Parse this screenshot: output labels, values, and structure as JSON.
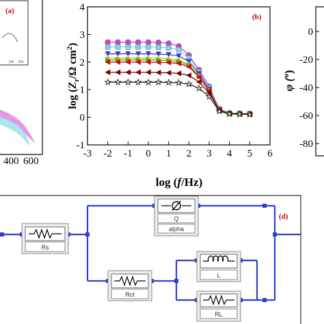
{
  "panels": {
    "a": {
      "tag": "(a)",
      "x_ticks_visible": [
        "400",
        "600"
      ],
      "inset_ticks": [
        "1.6",
        "2.0"
      ]
    },
    "b": {
      "tag": "(b)",
      "ylabel_parts": [
        "log (",
        "Z",
        "r",
        "/",
        "Ω cm",
        "2",
        ")"
      ],
      "xlabel_parts": [
        "log (",
        "f",
        "/Hz)"
      ]
    },
    "c": {
      "ylabel_parts": [
        "φ (",
        "o",
        ")"
      ],
      "y_ticks": [
        "0",
        "-20",
        "-40",
        "-60",
        "-80"
      ]
    },
    "d": {
      "tag": "(d)",
      "components": {
        "rs": "Rs",
        "q": "Q",
        "alpha": "alpha",
        "rct": "Rct",
        "l": "L",
        "rl": "RL"
      }
    }
  },
  "chart_data": [
    {
      "panel": "b",
      "type": "line",
      "xlabel": "log (f/Hz)",
      "ylabel": "log (Zr/Ω cm2)",
      "xlim": [
        -3,
        6
      ],
      "ylim": [
        -1,
        4
      ],
      "x_ticks": [
        -3,
        -2,
        -1,
        0,
        1,
        2,
        3,
        4,
        5,
        6
      ],
      "y_ticks": [
        -1,
        0,
        1,
        2,
        3,
        4
      ],
      "x": [
        -2,
        -1.5,
        -1,
        -0.5,
        0,
        0.5,
        1,
        1.5,
        2,
        2.5,
        3,
        3.5,
        4,
        4.5,
        5
      ],
      "series": [
        {
          "color": "#cc44cc",
          "marker": "circle",
          "values": [
            2.72,
            2.72,
            2.72,
            2.72,
            2.72,
            2.71,
            2.68,
            2.58,
            2.25,
            1.72,
            1.12,
            0.3,
            0.15,
            0.14,
            0.13
          ]
        },
        {
          "color": "#7fd4e8",
          "marker": "square",
          "values": [
            2.55,
            2.55,
            2.55,
            2.55,
            2.55,
            2.54,
            2.52,
            2.45,
            2.15,
            1.65,
            1.08,
            0.3,
            0.14,
            0.13,
            0.12
          ]
        },
        {
          "color": "#3a3ad9",
          "marker": "triangle-down",
          "values": [
            2.3,
            2.3,
            2.3,
            2.3,
            2.3,
            2.29,
            2.27,
            2.22,
            2.02,
            1.58,
            1.02,
            0.28,
            0.14,
            0.13,
            0.12
          ]
        },
        {
          "color": "#e6b800",
          "marker": "triangle-up",
          "values": [
            2.15,
            2.15,
            2.15,
            2.15,
            2.15,
            2.14,
            2.12,
            2.08,
            1.92,
            1.5,
            0.98,
            0.27,
            0.13,
            0.12,
            0.11
          ]
        },
        {
          "color": "#2db82d",
          "marker": "triangle-right",
          "values": [
            2.08,
            2.08,
            2.08,
            2.08,
            2.08,
            2.07,
            2.05,
            2.02,
            1.88,
            1.48,
            0.96,
            0.27,
            0.13,
            0.12,
            0.11
          ]
        },
        {
          "color": "#e00000",
          "marker": "triangle-left",
          "values": [
            2.0,
            2.0,
            2.0,
            2.0,
            2.0,
            1.99,
            1.98,
            1.95,
            1.83,
            1.45,
            0.95,
            0.26,
            0.13,
            0.12,
            0.11
          ]
        },
        {
          "color": "#7a0000",
          "marker": "triangle-left",
          "values": [
            1.63,
            1.63,
            1.63,
            1.63,
            1.63,
            1.62,
            1.61,
            1.59,
            1.52,
            1.28,
            0.88,
            0.25,
            0.13,
            0.12,
            0.11
          ]
        },
        {
          "color": "#222222",
          "marker": "star",
          "values": [
            1.27,
            1.27,
            1.27,
            1.27,
            1.27,
            1.27,
            1.26,
            1.25,
            1.2,
            1.05,
            0.75,
            0.22,
            0.12,
            0.11,
            0.1
          ]
        }
      ]
    }
  ]
}
